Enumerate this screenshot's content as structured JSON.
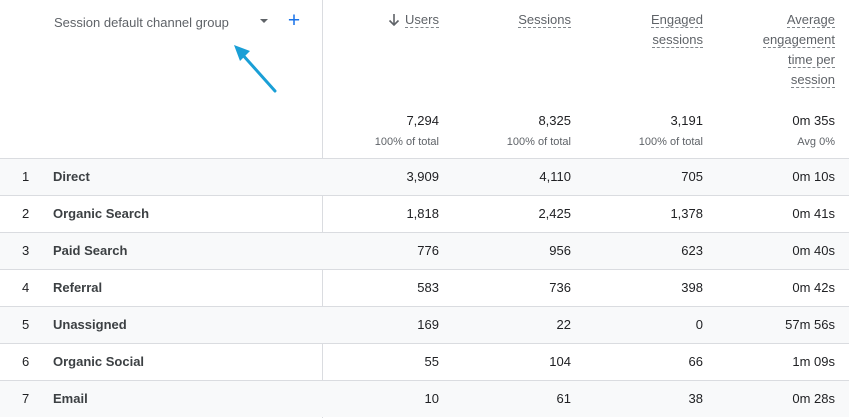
{
  "dimension": {
    "label": "Session default channel group",
    "dropdown_icon": "caret-down-icon",
    "add_icon": "plus-icon",
    "add_glyph": "+"
  },
  "annotation": {
    "icon": "arrow-pointer-icon",
    "color": "#1a9fd6"
  },
  "columns": [
    {
      "key": "users",
      "label": "Users",
      "sorted": "desc",
      "sort_icon": "arrow-down-icon"
    },
    {
      "key": "sessions",
      "label": "Sessions"
    },
    {
      "key": "engaged",
      "label_lines": [
        "Engaged",
        "sessions"
      ]
    },
    {
      "key": "avg_time",
      "label_lines": [
        "Average",
        "engagement",
        "time per",
        "session"
      ]
    }
  ],
  "totals": {
    "users": "7,294",
    "users_pct": "100% of total",
    "sessions": "8,325",
    "sessions_pct": "100% of total",
    "engaged": "3,191",
    "engaged_pct": "100% of total",
    "avg_time": "0m 35s",
    "avg_time_pct": "Avg 0%"
  },
  "rows": [
    {
      "index": "1",
      "name": "Direct",
      "users": "3,909",
      "sessions": "4,110",
      "engaged": "705",
      "avg_time": "0m 10s"
    },
    {
      "index": "2",
      "name": "Organic Search",
      "users": "1,818",
      "sessions": "2,425",
      "engaged": "1,378",
      "avg_time": "0m 41s"
    },
    {
      "index": "3",
      "name": "Paid Search",
      "users": "776",
      "sessions": "956",
      "engaged": "623",
      "avg_time": "0m 40s"
    },
    {
      "index": "4",
      "name": "Referral",
      "users": "583",
      "sessions": "736",
      "engaged": "398",
      "avg_time": "0m 42s"
    },
    {
      "index": "5",
      "name": "Unassigned",
      "users": "169",
      "sessions": "22",
      "engaged": "0",
      "avg_time": "57m 56s"
    },
    {
      "index": "6",
      "name": "Organic Social",
      "users": "55",
      "sessions": "104",
      "engaged": "66",
      "avg_time": "1m 09s"
    },
    {
      "index": "7",
      "name": "Email",
      "users": "10",
      "sessions": "61",
      "engaged": "38",
      "avg_time": "0m 28s"
    }
  ],
  "colors": {
    "accent": "#1a73e8",
    "divider": "#dadce0",
    "row_shade": "#f8f9fa"
  }
}
